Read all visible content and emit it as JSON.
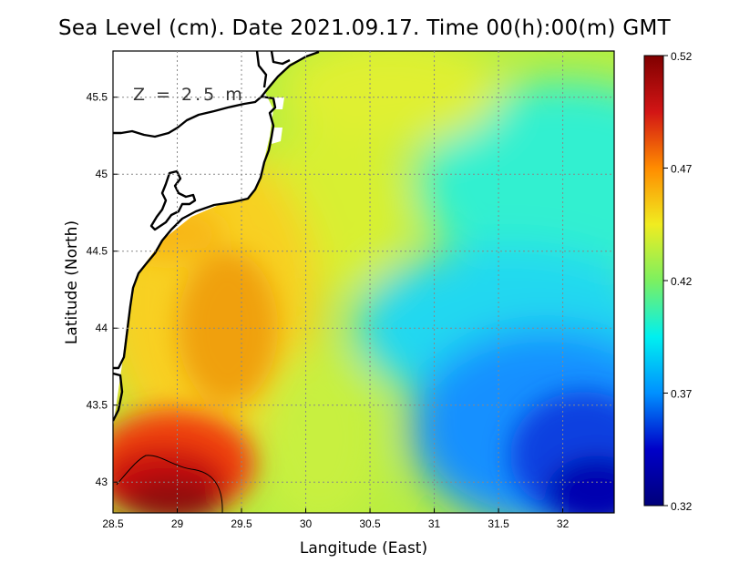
{
  "title": "Sea Level (cm). Date 2021.09.17. Time 00(h):00(m) GMT",
  "depth_label": "Z = 2.5 m",
  "colorbar": {
    "ticks": [
      "0.52",
      "0.47",
      "0.42",
      "0.37",
      "0.32"
    ],
    "colors": [
      "#800000",
      "#d21515",
      "#ff8c00",
      "#f0ec20",
      "#7cf060",
      "#00f0f0",
      "#0090ff",
      "#0000c8",
      "#00007a"
    ]
  },
  "chart_data": {
    "type": "heatmap",
    "title": "Sea Level (cm). Date 2021.09.17. Time 00(h):00(m) GMT",
    "xlabel": "Langitude (East)",
    "ylabel": "Latitude (North)",
    "xlim": [
      28.5,
      32.4
    ],
    "ylim": [
      42.8,
      45.8
    ],
    "x_ticks": [
      "28.5",
      "29",
      "29.5",
      "30",
      "30.5",
      "31",
      "31.5",
      "32"
    ],
    "y_ticks": [
      "43",
      "43.5",
      "44",
      "44.5",
      "45",
      "45.5"
    ],
    "value_range": [
      0.32,
      0.52
    ],
    "grid": true,
    "approx_values": [
      {
        "lon": 29.0,
        "lat": 42.9,
        "value": 0.52
      },
      {
        "lon": 28.8,
        "lat": 43.1,
        "value": 0.5
      },
      {
        "lon": 29.5,
        "lat": 43.0,
        "value": 0.47
      },
      {
        "lon": 29.5,
        "lat": 44.0,
        "value": 0.46
      },
      {
        "lon": 29.0,
        "lat": 44.4,
        "value": 0.45
      },
      {
        "lon": 30.5,
        "lat": 45.5,
        "value": 0.44
      },
      {
        "lon": 30.5,
        "lat": 44.5,
        "value": 0.43
      },
      {
        "lon": 31.5,
        "lat": 44.0,
        "value": 0.39
      },
      {
        "lon": 32.2,
        "lat": 45.0,
        "value": 0.4
      },
      {
        "lon": 32.2,
        "lat": 43.5,
        "value": 0.35
      },
      {
        "lon": 32.2,
        "lat": 42.9,
        "value": 0.32
      }
    ]
  }
}
